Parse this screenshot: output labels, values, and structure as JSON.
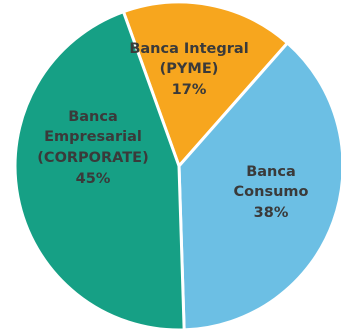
{
  "chart_data": {
    "type": "pie",
    "slices": [
      {
        "label_lines": [
          "Banca Integral",
          "(PYME)"
        ],
        "value": 17,
        "value_label": "17%",
        "color": "#f7a61e"
      },
      {
        "label_lines": [
          "Banca",
          "Consumo"
        ],
        "value": 38,
        "value_label": "38%",
        "color": "#6cbfe4"
      },
      {
        "label_lines": [
          "Banca",
          "Empresarial",
          "(CORPORATE)"
        ],
        "value": 45,
        "value_label": "45%",
        "color": "#16a085"
      }
    ],
    "title": "",
    "legend": "none"
  }
}
